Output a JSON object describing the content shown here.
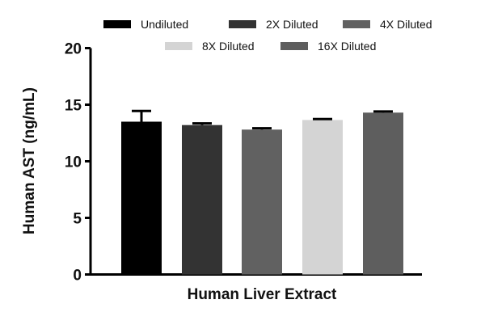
{
  "chart_data": {
    "type": "bar",
    "title": "",
    "xlabel": "Human Liver Extract",
    "ylabel": "Human AST (ng/mL)",
    "ylim": [
      0,
      20
    ],
    "yticks": [
      0,
      5,
      10,
      15,
      20
    ],
    "grid": false,
    "legend_position": "top",
    "categories": [
      "Undiluted",
      "2X Diluted",
      "4X Diluted",
      "8X Diluted",
      "16X Diluted"
    ],
    "series": [
      {
        "name": "Undiluted",
        "value": 13.5,
        "error": 0.95,
        "color": "#000000"
      },
      {
        "name": "2X Diluted",
        "value": 13.2,
        "error": 0.15,
        "color": "#333333"
      },
      {
        "name": "4X Diluted",
        "value": 12.8,
        "error": 0.12,
        "color": "#616161"
      },
      {
        "name": "8X Diluted",
        "value": 13.65,
        "error": 0.08,
        "color": "#d4d4d4"
      },
      {
        "name": "16X Diluted",
        "value": 14.3,
        "error": 0.1,
        "color": "#5e5e5e"
      }
    ]
  }
}
